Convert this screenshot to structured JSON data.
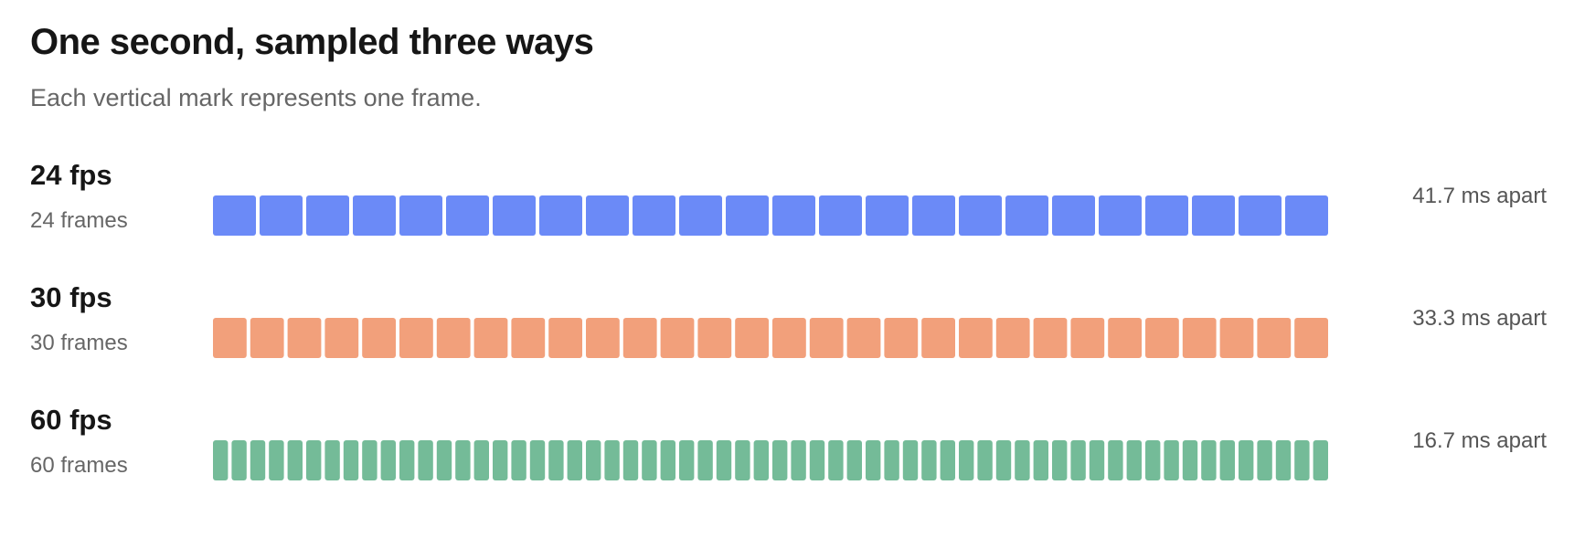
{
  "title": "One second, sampled three ways",
  "subtitle": "Each vertical mark represents one frame.",
  "chart_data": {
    "type": "bar",
    "title": "One second, sampled three ways",
    "subtitle": "Each vertical mark represents one frame.",
    "duration_seconds": 1,
    "series": [
      {
        "name": "24 fps",
        "label": "24 fps",
        "frames": 24,
        "frames_label": "24 frames",
        "interval_ms": 41.7,
        "interval_label": "41.7 ms apart",
        "color": "#6b8af7"
      },
      {
        "name": "30 fps",
        "label": "30 fps",
        "frames": 30,
        "frames_label": "30 frames",
        "interval_ms": 33.3,
        "interval_label": "33.3 ms apart",
        "color": "#f2a07b"
      },
      {
        "name": "60 fps",
        "label": "60 fps",
        "frames": 60,
        "frames_label": "60 frames",
        "interval_ms": 16.7,
        "interval_label": "16.7 ms apart",
        "color": "#74bb98"
      }
    ]
  }
}
